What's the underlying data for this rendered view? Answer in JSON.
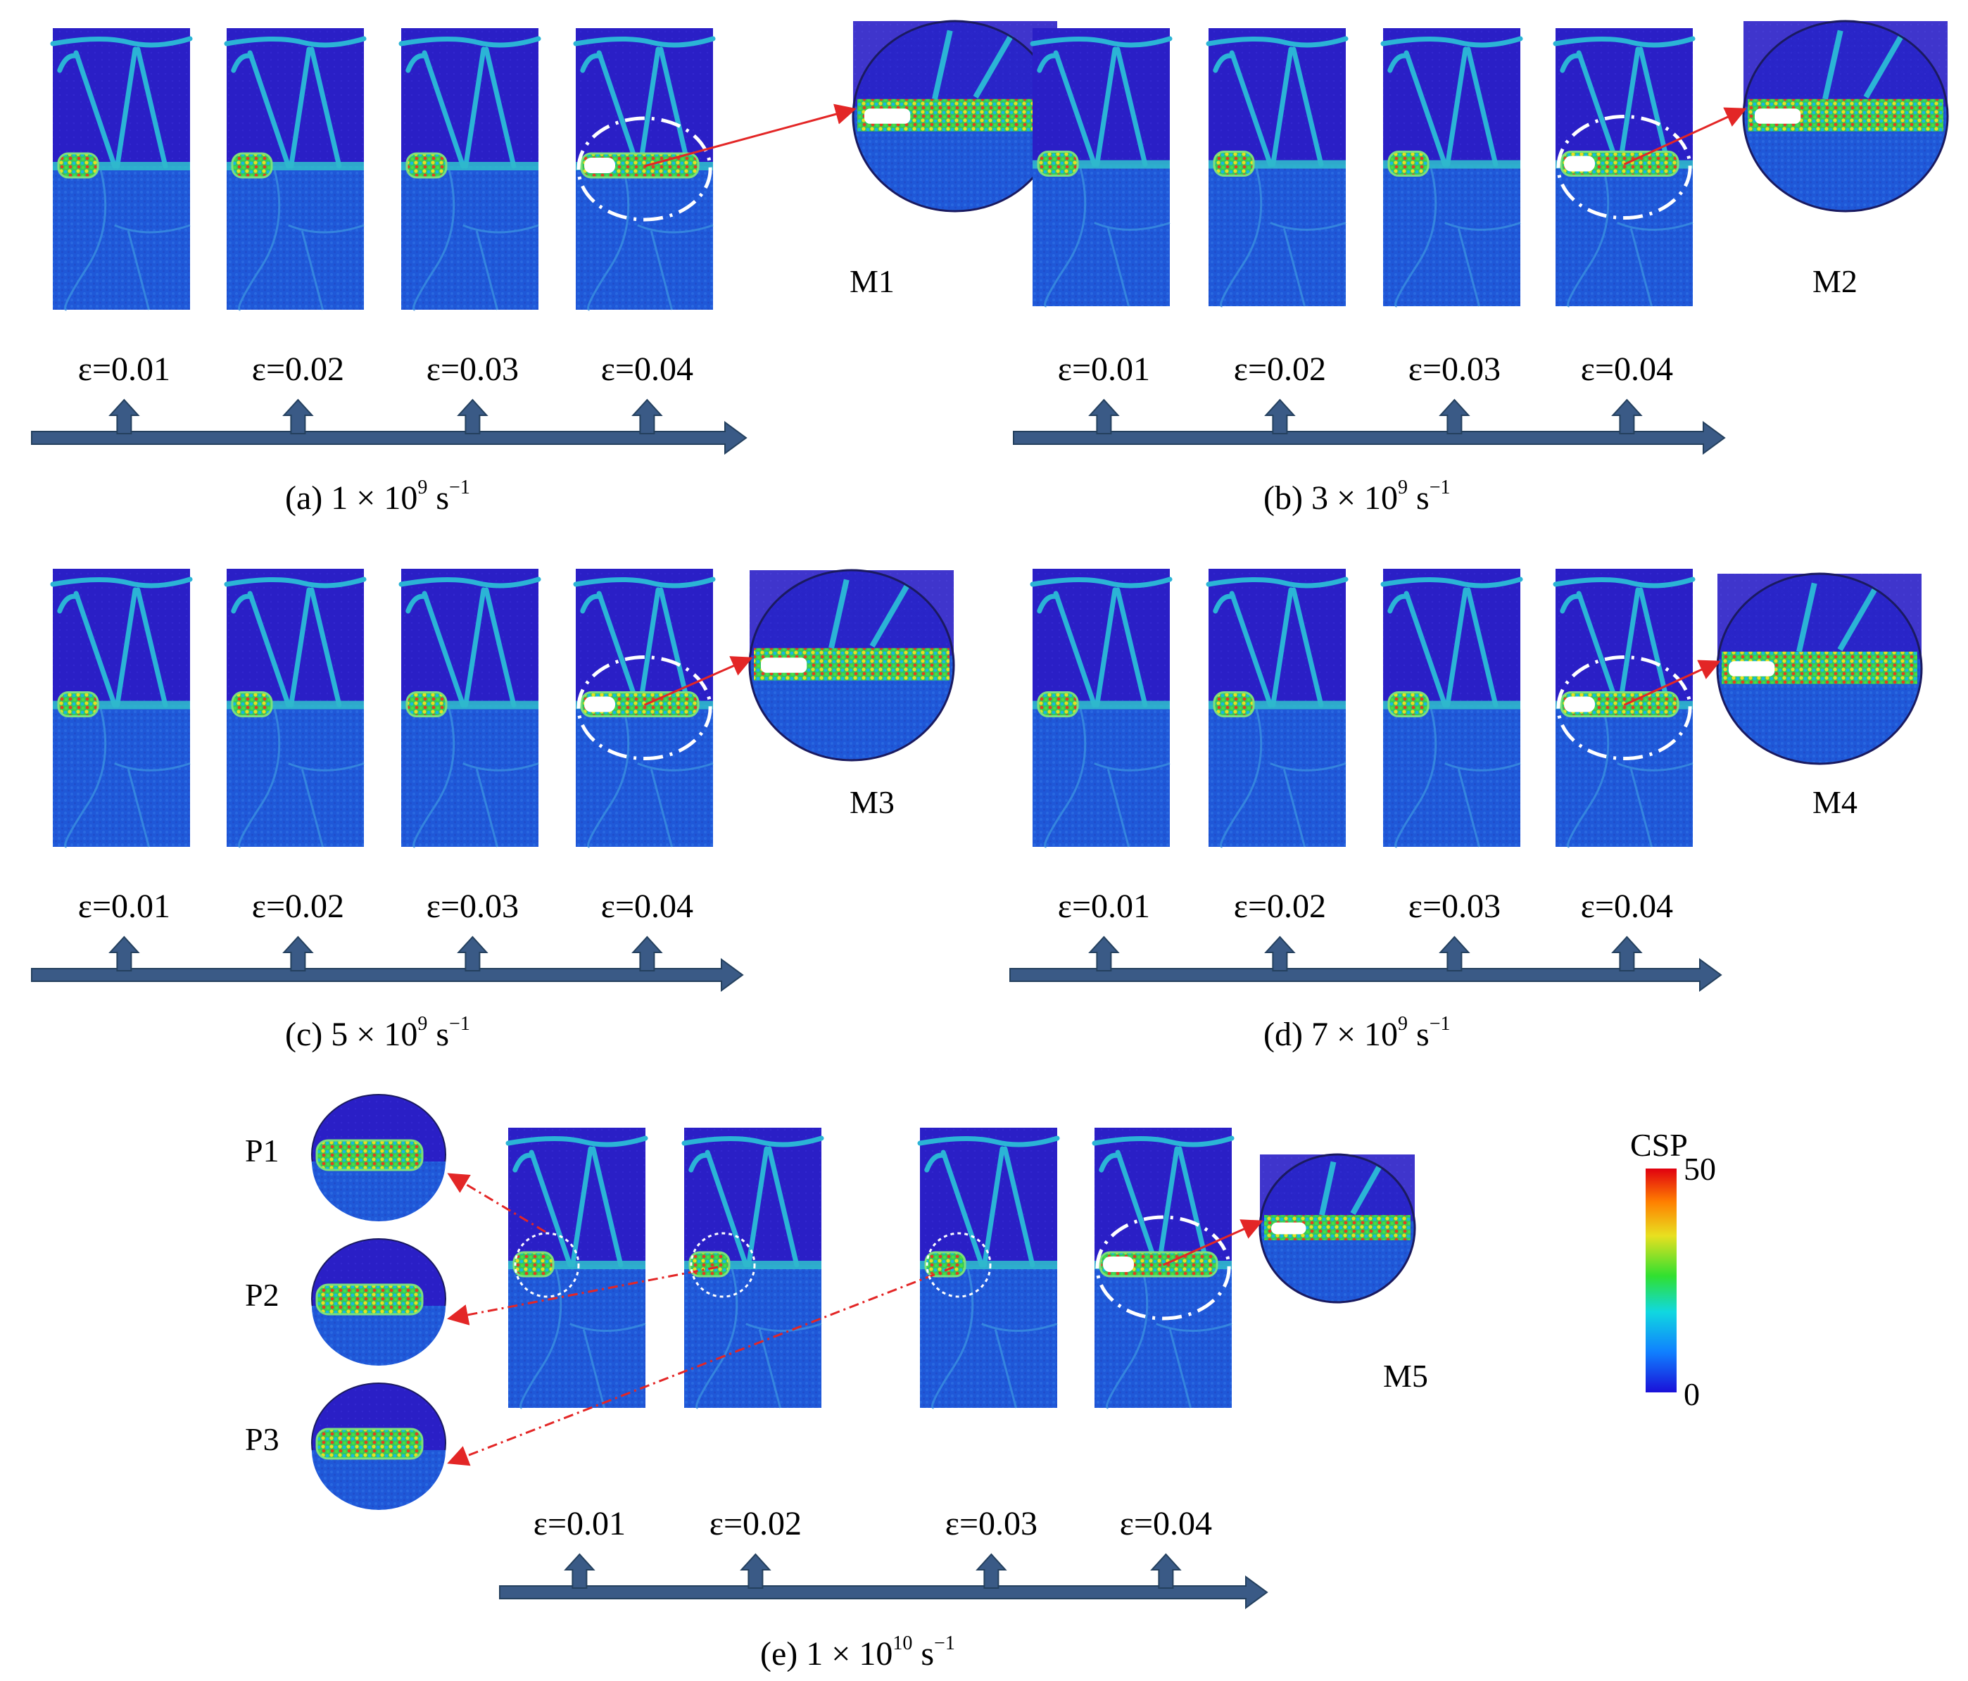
{
  "figure": {
    "colorbar": {
      "title": "CSP",
      "max_label": "50",
      "min_label": "0",
      "gradient_colors": [
        "#1a10d8",
        "#1080ff",
        "#10d8e0",
        "#30e030",
        "#e8e020",
        "#ff8000",
        "#e00010"
      ]
    },
    "colors": {
      "background_grain": "#2a1fc4",
      "matrix_blue": "#1d52d6",
      "boundary": "#2bb4d6",
      "timeline_arrow": "#3a5a86",
      "magnify_arrow": "#e32626"
    },
    "panels": [
      {
        "id": "a",
        "caption_prefix": "(a) 1 × 10",
        "caption_exp": "9",
        "caption_unit": " s",
        "caption_unit_exp": "−1",
        "magnified_label": "M1",
        "strains": [
          "ε=0.01",
          "ε=0.02",
          "ε=0.03",
          "ε=0.04"
        ]
      },
      {
        "id": "b",
        "caption_prefix": "(b) 3 × 10",
        "caption_exp": "9",
        "caption_unit": " s",
        "caption_unit_exp": "−1",
        "magnified_label": "M2",
        "strains": [
          "ε=0.01",
          "ε=0.02",
          "ε=0.03",
          "ε=0.04"
        ]
      },
      {
        "id": "c",
        "caption_prefix": "(c) 5 × 10",
        "caption_exp": "9",
        "caption_unit": " s",
        "caption_unit_exp": "−1",
        "magnified_label": "M3",
        "strains": [
          "ε=0.01",
          "ε=0.02",
          "ε=0.03",
          "ε=0.04"
        ]
      },
      {
        "id": "d",
        "caption_prefix": "(d) 7 × 10",
        "caption_exp": "9",
        "caption_unit": " s",
        "caption_unit_exp": "−1",
        "magnified_label": "M4",
        "strains": [
          "ε=0.01",
          "ε=0.02",
          "ε=0.03",
          "ε=0.04"
        ]
      },
      {
        "id": "e",
        "caption_prefix": "(e) 1 × 10",
        "caption_exp": "10",
        "caption_unit": " s",
        "caption_unit_exp": "−1",
        "magnified_label": "M5",
        "inset_labels": [
          "P1",
          "P2",
          "P3"
        ],
        "strains": [
          "ε=0.01",
          "ε=0.02",
          "ε=0.03",
          "ε=0.04"
        ]
      }
    ]
  }
}
